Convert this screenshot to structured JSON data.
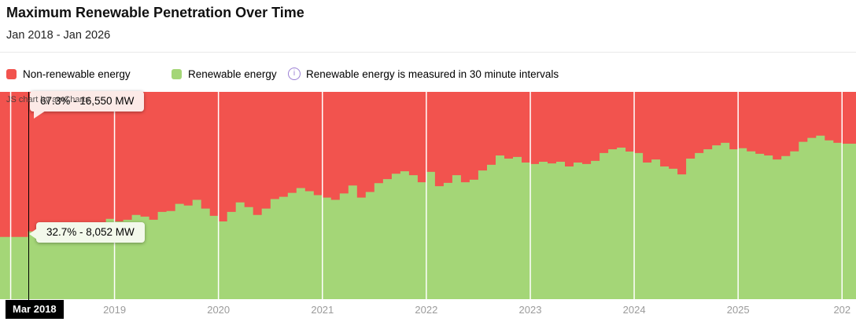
{
  "header": {
    "title": "Maximum Renewable Penetration Over Time",
    "subtitle": "Jan 2018 - Jan 2026"
  },
  "legend": {
    "items": [
      {
        "label": "Non-renewable energy",
        "color": "#F2534E"
      },
      {
        "label": "Renewable energy",
        "color": "#A4D677"
      }
    ],
    "info": {
      "icon": "info-circle-icon",
      "icon_glyph": "i",
      "icon_color": "#9B7FD4",
      "note": "Renewable energy is measured in 30 minute intervals"
    }
  },
  "watermark": "JS chart by amCharts",
  "tooltips": {
    "non_renewable_value": "67.3% - 16,550 MW",
    "renewable_value": "32.7% - 8,052 MW",
    "axis_value": "Mar 2018"
  },
  "chart_data": {
    "type": "area",
    "stacked": true,
    "x_start": "2018-01",
    "x_interval": "month",
    "x_tick_labels": [
      "2019",
      "2020",
      "2021",
      "2022",
      "2023",
      "2024",
      "2025",
      "202"
    ],
    "ylim": [
      0,
      100
    ],
    "y_axis_visible": false,
    "grid": "vertical-white-year-lines",
    "legend_position": "top",
    "series": [
      {
        "name": "Renewable energy",
        "color": "#A4D677",
        "values_pct": [
          30.0,
          30.0,
          32.7,
          33.0,
          33.3,
          33.6,
          34.0,
          34.4,
          34.8,
          35.3,
          36.2,
          38.7,
          37.5,
          38.3,
          40.6,
          39.8,
          38.3,
          42.1,
          42.5,
          46.0,
          45.2,
          47.9,
          43.7,
          40.2,
          37.5,
          42.1,
          46.7,
          44.4,
          40.6,
          43.7,
          48.3,
          49.4,
          51.3,
          53.6,
          52.1,
          50.2,
          49.0,
          47.9,
          51.0,
          54.8,
          49.0,
          51.7,
          56.0,
          57.9,
          60.5,
          61.7,
          59.8,
          56.4,
          61.4,
          54.5,
          56.1,
          59.8,
          56.4,
          57.6,
          62.1,
          64.8,
          69.3,
          67.8,
          68.6,
          65.9,
          65.2,
          66.3,
          65.5,
          66.3,
          64.0,
          65.9,
          65.2,
          66.7,
          70.5,
          72.3,
          73.1,
          71.2,
          70.5,
          65.9,
          67.4,
          64.0,
          62.9,
          60.2,
          67.8,
          70.5,
          72.3,
          74.2,
          75.4,
          72.3,
          72.8,
          71.3,
          70.1,
          69.3,
          67.4,
          69.0,
          71.3,
          75.9,
          77.8,
          78.9,
          76.6,
          75.4,
          75.0
        ]
      },
      {
        "name": "Non-renewable energy",
        "color": "#F2534E",
        "values_rule": "100 minus Renewable energy (stacked to 100%)"
      }
    ],
    "highlight": {
      "month": "Mar 2018",
      "renewable": "32.7% - 8,052 MW",
      "non_renewable": "67.3% - 16,550 MW"
    }
  },
  "colors": {
    "non_renewable": "#F2534E",
    "renewable": "#A4D677",
    "gridline": "#FFFFFF",
    "axis_label": "#9B9B9B",
    "crosshair": "#000000",
    "tooltip_red_bg": "#FCEAE7",
    "tooltip_green_bg": "#F3F9EB",
    "axis_tooltip_bg": "#000000"
  }
}
